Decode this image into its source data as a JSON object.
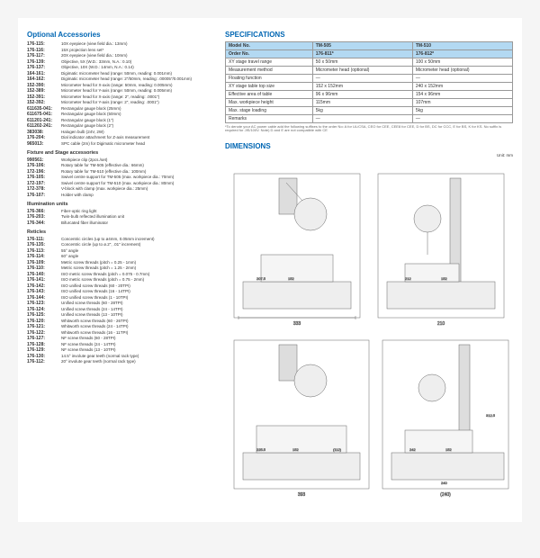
{
  "titles": {
    "opt": "Optional Accessories",
    "spec": "SPECIFICATIONS",
    "dim": "DIMENSIONS",
    "fix": "Fixture and Stage accessories",
    "ill": "Illumination units",
    "ret": "Reticles"
  },
  "acc": [
    {
      "c": "176-115:",
      "d": "10X eyepiece (view field dia.: 13mm)"
    },
    {
      "c": "176-116:",
      "d": "15X projection lens set*"
    },
    {
      "c": "176-117:",
      "d": "20X eyepiece (view field dia.: 10mm)"
    },
    {
      "c": "176-139:",
      "d": "Objective, 5X (W.D.: 33mm, N.A.: 0.10)"
    },
    {
      "c": "176-137:",
      "d": "Objective, 10X (W.D.: 14mm, N.A.: 0.14)"
    },
    {
      "c": "164-161:",
      "d": "Digimatic micrometer head (range: 50mm, reading: 0.001mm)"
    },
    {
      "c": "164-162:",
      "d": "Digimatic micrometer head (range: 2\"/50mm, reading: .00005\"/0.001mm)"
    },
    {
      "c": "152-390:",
      "d": "Micrometer head for X-axis (range: 50mm, reading: 0.005mm)"
    },
    {
      "c": "152-389:",
      "d": "Micrometer head for Y-axis (range: 50mm, reading: 0.005mm)"
    },
    {
      "c": "152-391:",
      "d": "Micrometer head for X-axis (range: 2\", reading: .0001\")"
    },
    {
      "c": "152-392:",
      "d": "Micrometer head for Y-axis (range: 2\", reading: .0001\")"
    },
    {
      "c": "611635-041:",
      "d": "Rectangular gauge block (25mm)"
    },
    {
      "c": "611675-041:",
      "d": "Rectangular gauge block (50mm)"
    },
    {
      "c": "611201-241:",
      "d": "Rectangular gauge block (1\")"
    },
    {
      "c": "611202-241:",
      "d": "Rectangular gauge block (2\")"
    },
    {
      "c": "383038:",
      "d": "Halogen bulb (24V, 2W)"
    },
    {
      "c": "176-204:",
      "d": "Dial indicator attachment for Z-axis measurement"
    },
    {
      "c": "965013:",
      "d": "SPC cable (2m) for Digimatic micrometer head"
    }
  ],
  "fix": [
    {
      "c": "990561:",
      "d": "Workpiece clip (2pcs./set)"
    },
    {
      "c": "176-106:",
      "d": "Rotary table for TM-505 (effective dia.: 66mm)"
    },
    {
      "c": "172-196:",
      "d": "Rotary table for TM-510 (effective dia.: 100mm)"
    },
    {
      "c": "176-105:",
      "d": "Swivel centre support for TM-505 (max. workpiece dia.: 70mm)"
    },
    {
      "c": "172-197:",
      "d": "Swivel centre support for TM-510 (max. workpiece dia.: 80mm)"
    },
    {
      "c": "172-378:",
      "d": "V-block with clamp (max. workpiece dia.: 25mm)"
    },
    {
      "c": "176-107:",
      "d": "Holder with clamp"
    }
  ],
  "ill": [
    {
      "c": "176-366:",
      "d": "Fiber-optic ring light"
    },
    {
      "c": "176-203:",
      "d": "Twin-bulb reflected illumination unit"
    },
    {
      "c": "176-344:",
      "d": "Bifurcated fiber illuminator"
    }
  ],
  "ret": [
    {
      "c": "176-111:",
      "d": "Concentric circles (up to ø4mm, 0.05mm increment)"
    },
    {
      "c": "176-135:",
      "d": "Concentric circle (up to ø.2\", .01\" increment)"
    },
    {
      "c": "176-113:",
      "d": "55° angle"
    },
    {
      "c": "176-114:",
      "d": "60° angle"
    },
    {
      "c": "176-109:",
      "d": "Metric screw threads (pitch = 0.25 - 1mm)"
    },
    {
      "c": "176-110:",
      "d": "Metric screw threads (pitch = 1.25 - 2mm)"
    },
    {
      "c": "176-140:",
      "d": "ISO metric screw threads (pitch = 0.075 - 0.7mm)"
    },
    {
      "c": "176-141:",
      "d": "ISO metric screw threads (pitch = 0.75 - 2mm)"
    },
    {
      "c": "176-142:",
      "d": "ISO unified screw threads (60 - 20TPI)"
    },
    {
      "c": "176-143:",
      "d": "ISO unified screw threads (16 - 14TPI)"
    },
    {
      "c": "176-144:",
      "d": "ISO unified screw threads (1 - 10TPI)"
    },
    {
      "c": "176-123:",
      "d": "Unified screw threads (60 - 28TPI)"
    },
    {
      "c": "176-124:",
      "d": "Unified screw threads (24 - 14TPI)"
    },
    {
      "c": "176-125:",
      "d": "Unified screw threads (13 - 10TPI)"
    },
    {
      "c": "176-120:",
      "d": "Whitworth screw threads (60 - 26TPI)"
    },
    {
      "c": "176-121:",
      "d": "Whitworth screw threads (24 - 14TPI)"
    },
    {
      "c": "176-122:",
      "d": "Whitworth screw threads (16 - 11TPI)"
    },
    {
      "c": "176-127:",
      "d": "NF screw threads (60 - 28TPI)"
    },
    {
      "c": "176-128:",
      "d": "NF screw threads (24 - 14TPI)"
    },
    {
      "c": "176-129:",
      "d": "NF screw threads (13 - 10TPI)"
    },
    {
      "c": "176-130:",
      "d": "14.5° involute gear teeth (normal rack type)"
    },
    {
      "c": "176-112:",
      "d": "20° involute gear teeth (normal rack type)"
    }
  ],
  "spec": {
    "rows": [
      [
        "Model No.",
        "TM-505",
        "TM-510"
      ],
      [
        "Order No.",
        "176-811*",
        "176-812*"
      ],
      [
        "XY stage travel range",
        "50 x 50mm",
        "100 x 50mm"
      ],
      [
        "Measurement method",
        "Micrometer head (optional)",
        "Micrometer head (optional)"
      ],
      [
        "Floating function",
        "—",
        "—"
      ],
      [
        "XY stage table top size",
        "152 x 152mm",
        "240 x 152mm"
      ],
      [
        "Effective area of table",
        "96 x 96mm",
        "154 x 96mm"
      ],
      [
        "Max. workpiece height",
        "115mm",
        "107mm"
      ],
      [
        "Max. stage loading",
        "5kg",
        "5kg"
      ],
      [
        "Remarks",
        "—",
        "—"
      ]
    ]
  },
  "footnote": "*To denote your AC power cable add the following suffixes to the order No: A for UL/CSA, CEO for CEE, CEE8 for CEE, D for BS, DC for CCC, E for BS, K for KS. No suffix is required for JIS/100V.\nNote) D and E are not compatible with CE",
  "unit": "Unit: mm",
  "dims": {
    "a": "207.5",
    "b": "152",
    "c": "333",
    "d": "212",
    "e": "152",
    "f": "210",
    "g": "225.5",
    "h": "152",
    "i": "393",
    "j": "242",
    "k": "240",
    "l": "152",
    "m": "(240)",
    "n": "312.5",
    "o": "(112)"
  }
}
